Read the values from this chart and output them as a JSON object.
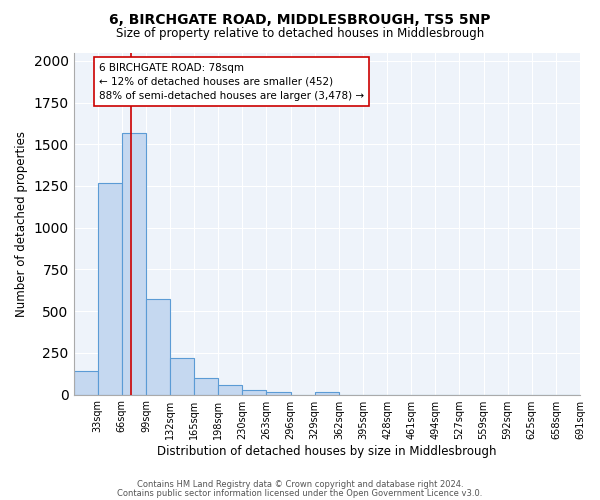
{
  "title": "6, BIRCHGATE ROAD, MIDDLESBROUGH, TS5 5NP",
  "subtitle": "Size of property relative to detached houses in Middlesbrough",
  "xlabel": "Distribution of detached houses by size in Middlesbrough",
  "ylabel": "Number of detached properties",
  "footnote1": "Contains HM Land Registry data © Crown copyright and database right 2024.",
  "footnote2": "Contains public sector information licensed under the Open Government Licence v3.0.",
  "categories": [
    "33sqm",
    "66sqm",
    "99sqm",
    "132sqm",
    "165sqm",
    "198sqm",
    "230sqm",
    "263sqm",
    "296sqm",
    "329sqm",
    "362sqm",
    "395sqm",
    "428sqm",
    "461sqm",
    "494sqm",
    "527sqm",
    "559sqm",
    "592sqm",
    "625sqm",
    "658sqm",
    "691sqm"
  ],
  "values": [
    140,
    1270,
    1570,
    570,
    220,
    100,
    55,
    25,
    15,
    0,
    15,
    0,
    0,
    0,
    0,
    0,
    0,
    0,
    0,
    0,
    0
  ],
  "bar_color": "#c5d8f0",
  "bar_edge_color": "#5b9bd5",
  "property_line_color": "#cc0000",
  "annotation_text": "6 BIRCHGATE ROAD: 78sqm\n← 12% of detached houses are smaller (452)\n88% of semi-detached houses are larger (3,478) →",
  "annotation_box_color": "white",
  "annotation_box_edge_color": "#cc0000",
  "ylim": [
    0,
    2050
  ],
  "bg_color": "#eef3fa",
  "grid_color": "white",
  "title_fontsize": 10,
  "subtitle_fontsize": 8.5,
  "axis_label_fontsize": 8.5,
  "tick_fontsize": 7,
  "annotation_fontsize": 7.5,
  "footnote_fontsize": 6,
  "bin_width": 33,
  "property_sqm": 78
}
